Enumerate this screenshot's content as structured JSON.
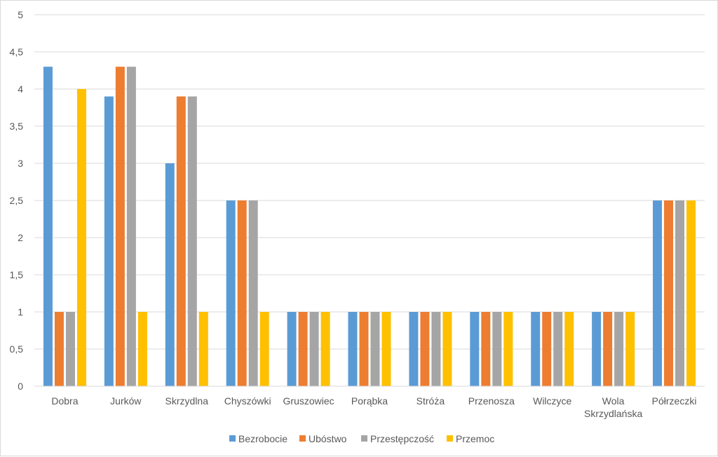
{
  "chart_data": {
    "type": "bar",
    "title": "",
    "xlabel": "",
    "ylabel": "",
    "ylim": [
      0,
      5
    ],
    "ytick_step": 0.5,
    "yticks": [
      "0",
      "0,5",
      "1",
      "1,5",
      "2",
      "2,5",
      "3",
      "3,5",
      "4",
      "4,5",
      "5"
    ],
    "grid": true,
    "legend_position": "bottom",
    "categories": [
      [
        "Dobra"
      ],
      [
        "Jurków"
      ],
      [
        "Skrzydlna"
      ],
      [
        "Chyszówki"
      ],
      [
        "Gruszowiec"
      ],
      [
        "Porąbka"
      ],
      [
        "Stróża"
      ],
      [
        "Przenosza"
      ],
      [
        "Wilczyce"
      ],
      [
        "Wola",
        "Skrzydlańska"
      ],
      [
        "Półrzeczki"
      ]
    ],
    "series": [
      {
        "name": "Bezrobocie",
        "color": "#5b9bd5",
        "values": [
          4.3,
          3.9,
          3.0,
          2.5,
          1,
          1,
          1,
          1,
          1,
          1,
          2.5
        ]
      },
      {
        "name": "Ubóstwo",
        "color": "#ed7d31",
        "values": [
          1,
          4.3,
          3.9,
          2.5,
          1,
          1,
          1,
          1,
          1,
          1,
          2.5
        ]
      },
      {
        "name": "Przestępczość",
        "color": "#a5a5a5",
        "values": [
          1,
          4.3,
          3.9,
          2.5,
          1,
          1,
          1,
          1,
          1,
          1,
          2.5
        ]
      },
      {
        "name": "Przemoc",
        "color": "#ffc000",
        "values": [
          4.0,
          1,
          1,
          1,
          1,
          1,
          1,
          1,
          1,
          1,
          2.5
        ]
      }
    ]
  }
}
